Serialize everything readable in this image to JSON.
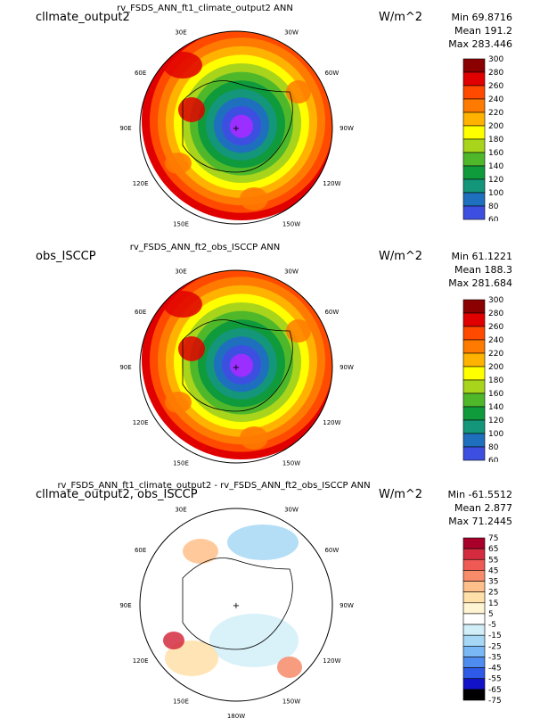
{
  "panels": [
    {
      "label": "cllmate_output2",
      "title": "rv_FSDS_ANN_ft1_climate_output2  ANN",
      "units": "W/m^2",
      "stats": {
        "min": "Min 69.8716",
        "mean": "Mean 191.2",
        "max": "Max 283.446"
      },
      "scale": "abs"
    },
    {
      "label": "obs_ISCCP",
      "title": "rv_FSDS_ANN_ft2_obs_ISCCP  ANN",
      "units": "W/m^2",
      "stats": {
        "min": "Min 61.1221",
        "mean": "Mean 188.3",
        "max": "Max 281.684"
      },
      "scale": "abs"
    },
    {
      "label": "cllmate_output2, obs_ISCCP",
      "title": "rv_FSDS_ANN_ft1_climate_output2 - rv_FSDS_ANN_ft2_obs_ISCCP  ANN",
      "units": "W/m^2",
      "stats": {
        "min": "Min -61.5512",
        "mean": "Mean 2.877",
        "max": "Max 71.2445"
      },
      "scale": "diff"
    }
  ],
  "lon_labels": [
    "30E",
    "30W",
    "60E",
    "60W",
    "90E",
    "90W",
    "120E",
    "120W",
    "150E",
    "150W",
    "180W"
  ],
  "colors": {
    "abs": [
      "#9b2fff",
      "#3d4fe0",
      "#1f6fbf",
      "#14967a",
      "#0f9a3c",
      "#4fb82a",
      "#a8d41c",
      "#ffff00",
      "#ffb300",
      "#ff7a00",
      "#ff4a00",
      "#e00000",
      "#8b0000"
    ],
    "diff": [
      "#1212c8",
      "#2d5ae6",
      "#4f8cf0",
      "#7ab8f5",
      "#a6d8f5",
      "#d2eef8",
      "#ffffff",
      "#fff5d2",
      "#ffe0a8",
      "#ffbf8a",
      "#f78b6a",
      "#ef5a54",
      "#d42c3e",
      "#a8002a"
    ]
  },
  "chart_data": [
    {
      "type": "heatmap",
      "title": "rv_FSDS_ANN_ft1_climate_output2  ANN",
      "projection": "north polar stereographic",
      "units": "W/m^2",
      "legend_levels": [
        300,
        280,
        260,
        240,
        220,
        200,
        180,
        160,
        140,
        120,
        100,
        80,
        60
      ],
      "min": 69.8716,
      "mean": 191.2,
      "max": 283.446,
      "value_range": [
        60,
        300
      ]
    },
    {
      "type": "heatmap",
      "title": "rv_FSDS_ANN_ft2_obs_ISCCP  ANN",
      "projection": "north polar stereographic",
      "units": "W/m^2",
      "legend_levels": [
        300,
        280,
        260,
        240,
        220,
        200,
        180,
        160,
        140,
        120,
        100,
        80,
        60
      ],
      "min": 61.1221,
      "mean": 188.3,
      "max": 281.684,
      "value_range": [
        60,
        300
      ]
    },
    {
      "type": "heatmap",
      "title": "rv_FSDS_ANN_ft1_climate_output2 - rv_FSDS_ANN_ft2_obs_ISCCP  ANN",
      "projection": "north polar stereographic",
      "units": "W/m^2",
      "legend_levels": [
        75,
        65,
        55,
        45,
        35,
        25,
        15,
        5,
        -5,
        -15,
        -25,
        -35,
        -45,
        -55,
        -65,
        -75
      ],
      "min": -61.5512,
      "mean": 2.877,
      "max": 71.2445,
      "value_range": [
        -75,
        75
      ]
    }
  ]
}
